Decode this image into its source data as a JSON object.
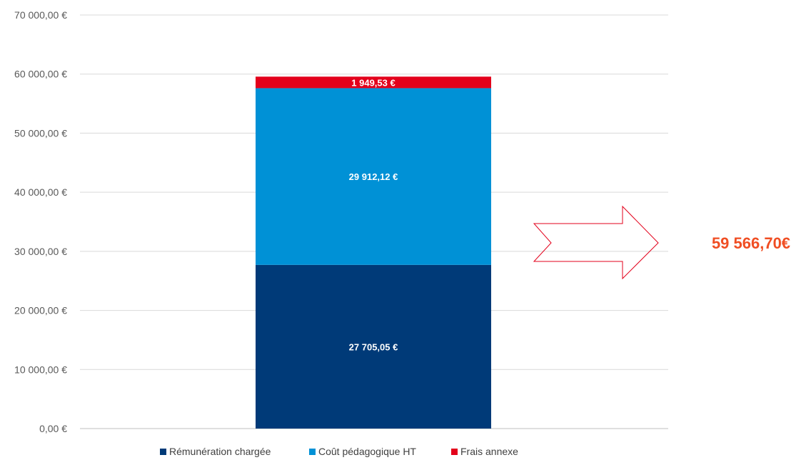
{
  "chart_data": {
    "type": "bar",
    "stacked": true,
    "ylim": [
      0,
      70000
    ],
    "yticks": [
      {
        "value": 0,
        "label": "0,00 €"
      },
      {
        "value": 10000,
        "label": "10 000,00 €"
      },
      {
        "value": 20000,
        "label": "20 000,00 €"
      },
      {
        "value": 30000,
        "label": "30 000,00 €"
      },
      {
        "value": 40000,
        "label": "40 000,00 €"
      },
      {
        "value": 50000,
        "label": "50 000,00 €"
      },
      {
        "value": 60000,
        "label": "60 000,00 €"
      },
      {
        "value": 70000,
        "label": "70 000,00 €"
      }
    ],
    "grid": true,
    "legend_position": "bottom",
    "series": [
      {
        "name": "Rémunération chargée",
        "value": 27705.05,
        "label": "27 705,05 €",
        "color": "#003a78"
      },
      {
        "name": "Coût pédagogique HT",
        "value": 29912.12,
        "label": "29 912,12 €",
        "color": "#0091d6"
      },
      {
        "name": "Frais annexe",
        "value": 1949.53,
        "label": "1 949,53 €",
        "color": "#e3001b"
      }
    ],
    "total_label": "59 566,70€",
    "total_color": "#f04e23",
    "arrow_color": "#e3001b"
  }
}
